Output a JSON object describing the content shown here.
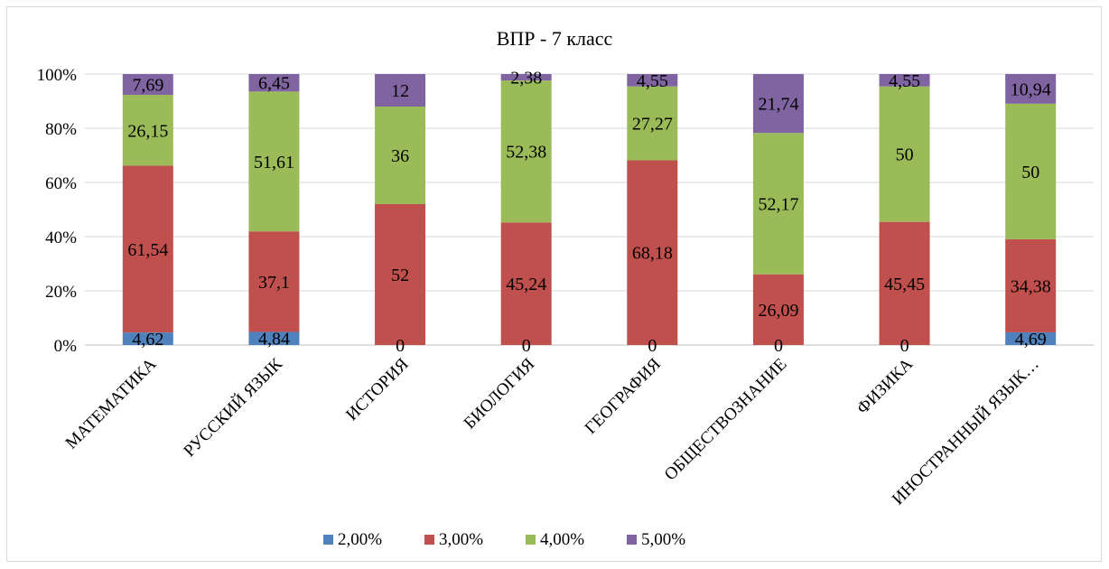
{
  "chart_data": {
    "type": "bar",
    "stacked": true,
    "normalized": true,
    "title": "ВПР - 7 класс",
    "categories": [
      "МАТЕМАТИКА",
      "РУССКИЙ ЯЗЫК",
      "ИСТОРИЯ",
      "БИОЛОГИЯ",
      "ГЕОГРАФИЯ",
      "ОБЩЕСТВОЗНАНИЕ",
      "ФИЗИКА",
      "ИНОСТРАННЫЙ ЯЗЫК…"
    ],
    "series": [
      {
        "name": "2,00%",
        "color": "#4f81bd",
        "values": [
          4.62,
          4.84,
          0,
          0,
          0,
          0,
          0,
          4.69
        ],
        "labels": [
          "4,62",
          "4,84",
          "0",
          "0",
          "0",
          "0",
          "0",
          "4,69"
        ]
      },
      {
        "name": "3,00%",
        "color": "#c0504d",
        "values": [
          61.54,
          37.1,
          52,
          45.24,
          68.18,
          26.09,
          45.45,
          34.38
        ],
        "labels": [
          "61,54",
          "37,1",
          "52",
          "45,24",
          "68,18",
          "26,09",
          "45,45",
          "34,38"
        ]
      },
      {
        "name": "4,00%",
        "color": "#9bbb59",
        "values": [
          26.15,
          51.61,
          36,
          52.38,
          27.27,
          52.17,
          50,
          50
        ],
        "labels": [
          "26,15",
          "51,61",
          "36",
          "52,38",
          "27,27",
          "52,17",
          "50",
          "50"
        ]
      },
      {
        "name": "5,00%",
        "color": "#8064a2",
        "values": [
          7.69,
          6.45,
          12,
          2.38,
          4.55,
          21.74,
          4.55,
          10.94
        ],
        "labels": [
          "7,69",
          "6,45",
          "12",
          "2,38",
          "4,55",
          "21,74",
          "4,55",
          "10,94"
        ]
      }
    ],
    "yticks": [
      "0%",
      "20%",
      "40%",
      "60%",
      "80%",
      "100%"
    ],
    "ylim": [
      0,
      100
    ],
    "grid": true,
    "legend": "bottom"
  }
}
